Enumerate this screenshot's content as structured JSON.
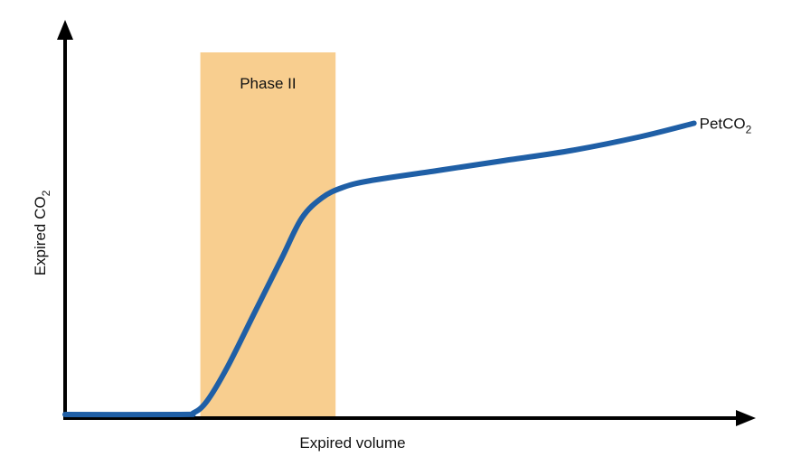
{
  "chart_data": {
    "type": "line",
    "xlabel": "Expired volume",
    "ylabel": "Expired CO",
    "ylabel_sub": "2",
    "series_label": "PetCO",
    "series_label_sub": "2",
    "shaded_region": {
      "label": "Phase II",
      "x_start": 0.2,
      "x_end": 0.4
    },
    "x": [
      0,
      0.17,
      0.19,
      0.21,
      0.24,
      0.28,
      0.32,
      0.35,
      0.38,
      0.41,
      0.45,
      0.55,
      0.65,
      0.75,
      0.85,
      0.93
    ],
    "y": [
      0.0,
      0.0,
      0.005,
      0.04,
      0.14,
      0.3,
      0.46,
      0.58,
      0.64,
      0.67,
      0.69,
      0.72,
      0.75,
      0.78,
      0.82,
      0.86
    ],
    "xlim": [
      0,
      1
    ],
    "ylim": [
      0,
      1
    ],
    "colors": {
      "line": "#1f5fa6",
      "shade": "#f8ce8f",
      "axis": "#000000",
      "series_label": "#1f5fa6"
    }
  }
}
